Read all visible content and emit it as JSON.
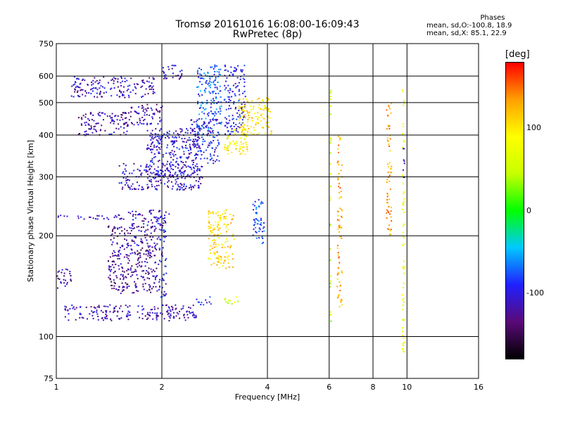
{
  "title": {
    "line1": "Tromsø 20161016 16:08:00-16:09:43",
    "line2": "RwPretec (8p)"
  },
  "phases_box": {
    "header": "Phases",
    "o_stats": "mean, sd,O:-100.8, 18.9",
    "x_stats": "mean, sd,X: 85.1, 22.9"
  },
  "colorbar": {
    "unit": "[deg]",
    "ticks": [
      "100",
      "0",
      "-100"
    ],
    "tick_values": [
      100,
      0,
      -100
    ],
    "range": [
      -180,
      180
    ],
    "gradient": [
      "#000000",
      "#5a0a78",
      "#2020ff",
      "#00c8ff",
      "#00ff00",
      "#c8ff00",
      "#ffff00",
      "#ffa000",
      "#ff0000"
    ]
  },
  "chart_data": {
    "type": "scatter",
    "title": "Tromsø 20161016 16:08:00-16:09:43",
    "subtitle": "RwPretec (8p)",
    "xlabel": "Frequency [MHz]",
    "ylabel": "Stationary phase Virtual Height [km]",
    "x_scale": "log",
    "y_scale": "log",
    "xlim": [
      1,
      16
    ],
    "ylim": [
      75,
      750
    ],
    "x_ticks": [
      1,
      2,
      4,
      6,
      8,
      10,
      16
    ],
    "x_tick_labels": [
      "1",
      "2",
      "4",
      "6",
      "8",
      "10",
      "16"
    ],
    "y_ticks": [
      75,
      100,
      200,
      300,
      400,
      500,
      600,
      750
    ],
    "y_tick_labels": [
      "75",
      "100",
      "200",
      "300",
      "400",
      "500",
      "600",
      "750"
    ],
    "x_gridlines": [
      2,
      4,
      6,
      8,
      10
    ],
    "y_gridlines": [
      100,
      200,
      300,
      400,
      500,
      600
    ],
    "color_by": "phase [deg]",
    "clusters": [
      {
        "x": [
          1.05,
          2.5
        ],
        "y": [
          112,
          125
        ],
        "phase": -115
      },
      {
        "x": [
          2.5,
          2.75
        ],
        "y": [
          125,
          132
        ],
        "phase": -100
      },
      {
        "x": [
          1.4,
          1.95
        ],
        "y": [
          135,
          215
        ],
        "phase": -125
      },
      {
        "x": [
          1.95,
          2.05
        ],
        "y": [
          130,
          210
        ],
        "phase": -95
      },
      {
        "x": [
          1.0,
          1.1
        ],
        "y": [
          140,
          160
        ],
        "phase": -120
      },
      {
        "x": [
          1.0,
          1.6
        ],
        "y": [
          225,
          232
        ],
        "phase": -115
      },
      {
        "x": [
          1.6,
          2.1
        ],
        "y": [
          212,
          240
        ],
        "phase": -110
      },
      {
        "x": [
          1.5,
          2.6
        ],
        "y": [
          275,
          330
        ],
        "phase": -110
      },
      {
        "x": [
          1.85,
          2.55
        ],
        "y": [
          300,
          420
        ],
        "phase": -105
      },
      {
        "x": [
          2.5,
          2.95
        ],
        "y": [
          400,
          650
        ],
        "phase": -75
      },
      {
        "x": [
          2.4,
          2.9
        ],
        "y": [
          330,
          450
        ],
        "phase": -100
      },
      {
        "x": [
          3.0,
          3.45
        ],
        "y": [
          400,
          650
        ],
        "phase": -95
      },
      {
        "x": [
          3.05,
          3.5
        ],
        "y": [
          360,
          420
        ],
        "phase": 85
      },
      {
        "x": [
          3.3,
          4.1
        ],
        "y": [
          400,
          520
        ],
        "phase": 100
      },
      {
        "x": [
          3.0,
          3.5
        ],
        "y": [
          350,
          380
        ],
        "phase": 95
      },
      {
        "x": [
          3.0,
          3.3
        ],
        "y": [
          125,
          132
        ],
        "phase": 60
      },
      {
        "x": [
          1.1,
          1.9
        ],
        "y": [
          520,
          600
        ],
        "phase": -110
      },
      {
        "x": [
          1.6,
          2.0
        ],
        "y": [
          430,
          500
        ],
        "phase": -120
      },
      {
        "x": [
          2.0,
          2.3
        ],
        "y": [
          590,
          650
        ],
        "phase": -110
      },
      {
        "x": [
          1.15,
          1.6
        ],
        "y": [
          400,
          470
        ],
        "phase": -120
      },
      {
        "x": [
          1.8,
          2.0
        ],
        "y": [
          360,
          420
        ],
        "phase": -110
      },
      {
        "x": [
          3.6,
          3.9
        ],
        "y": [
          190,
          260
        ],
        "phase": -80
      },
      {
        "x": [
          2.7,
          3.2
        ],
        "y": [
          160,
          240
        ],
        "phase": 110
      },
      {
        "x": [
          6.0,
          6.05
        ],
        "y": [
          100,
          570
        ],
        "phase": 40
      },
      {
        "x": [
          6.3,
          6.5
        ],
        "y": [
          120,
          400
        ],
        "phase": 130
      },
      {
        "x": [
          9.65,
          9.8
        ],
        "y": [
          85,
          560
        ],
        "phase": 75
      },
      {
        "x": [
          9.7,
          9.8
        ],
        "y": [
          300,
          400
        ],
        "phase": -130
      },
      {
        "x": [
          8.7,
          9.0
        ],
        "y": [
          200,
          500
        ],
        "phase": 130
      }
    ]
  }
}
